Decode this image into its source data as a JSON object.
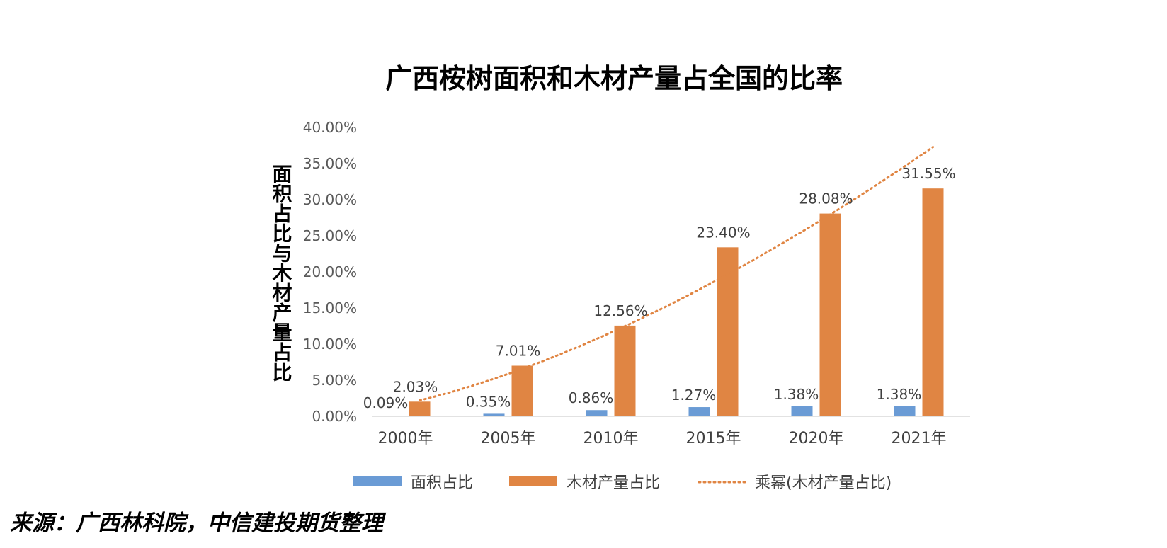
{
  "chart_data": {
    "type": "bar",
    "title": "广西桉树面积和木材产量占全国的比率",
    "ylabel": "面积占比与木材产量占比",
    "xlabel": "",
    "categories": [
      "2000年",
      "2005年",
      "2010年",
      "2015年",
      "2020年",
      "2021年"
    ],
    "ylim": [
      0,
      40
    ],
    "yticks": [
      "0.00%",
      "5.00%",
      "10.00%",
      "15.00%",
      "20.00%",
      "25.00%",
      "30.00%",
      "35.00%",
      "40.00%"
    ],
    "series": [
      {
        "name": "面积占比",
        "values": [
          0.09,
          0.35,
          0.86,
          1.27,
          1.38,
          1.38
        ],
        "labels": [
          "0.09%",
          "0.35%",
          "0.86%",
          "1.27%",
          "1.38%",
          "1.38%"
        ],
        "color": "#6A9BD5"
      },
      {
        "name": "木材产量占比",
        "values": [
          2.03,
          7.01,
          12.56,
          23.4,
          28.08,
          31.55
        ],
        "labels": [
          "2.03%",
          "7.01%",
          "12.56%",
          "23.40%",
          "28.08%",
          "31.55%"
        ],
        "color": "#E08543"
      }
    ],
    "trendline": {
      "name": "乘幂(木材产量占比)",
      "type": "power",
      "based_on": "木材产量占比",
      "color": "#E08543",
      "style": "dotted"
    },
    "grid": false,
    "legend": "bottom"
  },
  "source": "来源：广西林科院，中信建投期货整理"
}
